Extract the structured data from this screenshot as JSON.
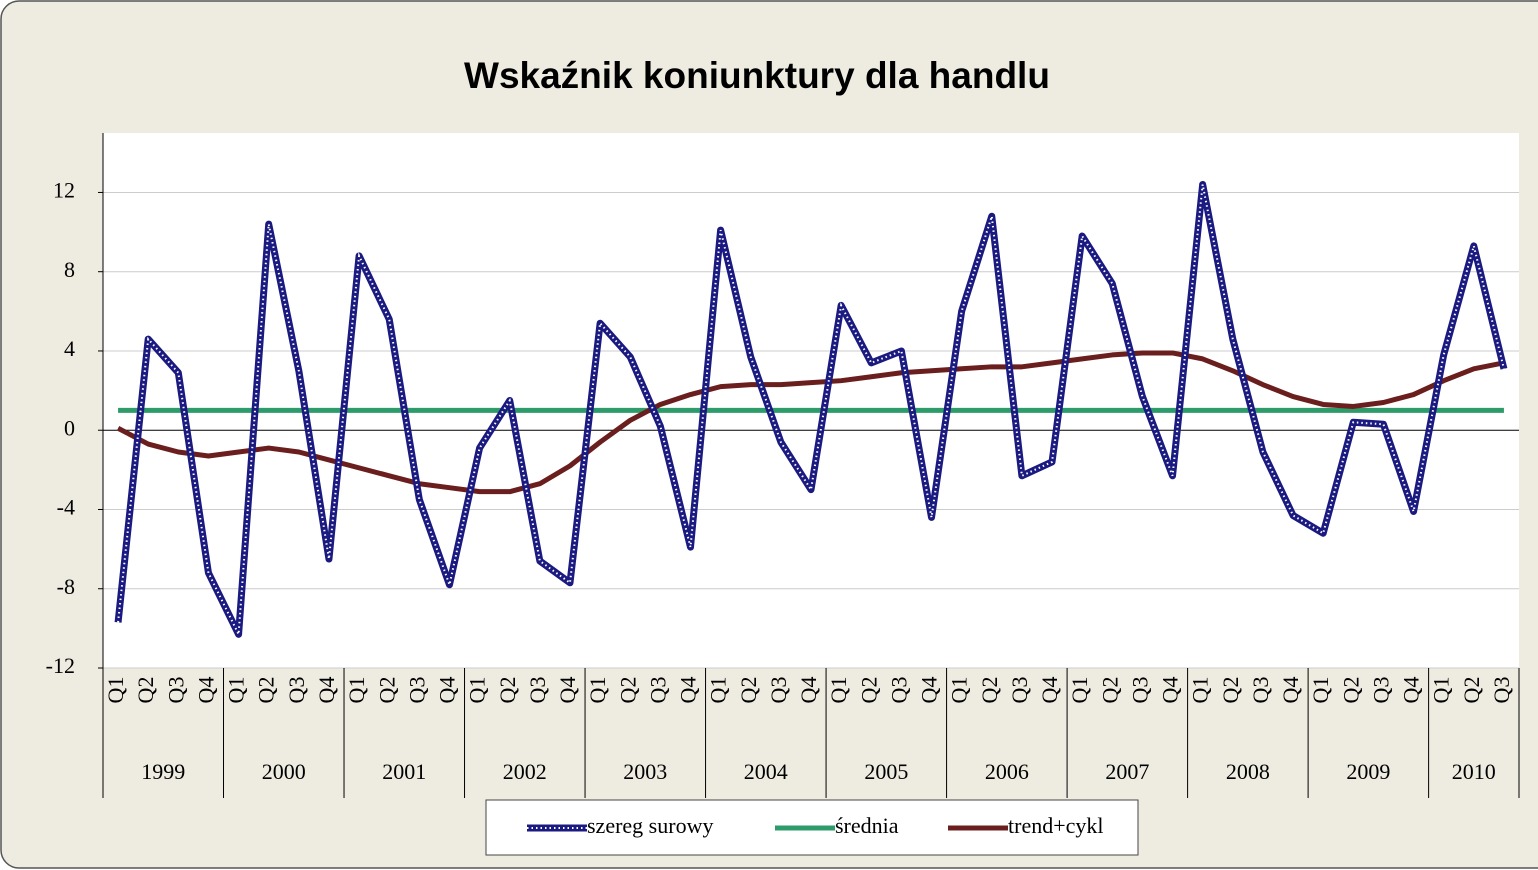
{
  "chart_data": {
    "type": "line",
    "title": "Wskaźnik koniunktury dla handlu",
    "categories": [
      "Q1",
      "Q2",
      "Q3",
      "Q4",
      "Q1",
      "Q2",
      "Q3",
      "Q4",
      "Q1",
      "Q2",
      "Q3",
      "Q4",
      "Q1",
      "Q2",
      "Q3",
      "Q4",
      "Q1",
      "Q2",
      "Q3",
      "Q4",
      "Q1",
      "Q2",
      "Q3",
      "Q4",
      "Q1",
      "Q2",
      "Q3",
      "Q4",
      "Q1",
      "Q2",
      "Q3",
      "Q4",
      "Q1",
      "Q2",
      "Q3",
      "Q4",
      "Q1",
      "Q2",
      "Q3",
      "Q4",
      "Q1",
      "Q2",
      "Q3",
      "Q4",
      "Q1",
      "Q2",
      "Q3"
    ],
    "years": [
      "1999",
      "2000",
      "2001",
      "2002",
      "2003",
      "2004",
      "2005",
      "2006",
      "2007",
      "2008",
      "2009",
      "2010"
    ],
    "series": [
      {
        "name": "szereg surowy",
        "color": "#1a1a80",
        "pattern": "dotted",
        "values": [
          -9.7,
          4.6,
          2.9,
          -7.2,
          -10.3,
          10.4,
          3.0,
          -6.5,
          8.8,
          5.6,
          -3.5,
          -7.8,
          -0.9,
          1.5,
          -6.6,
          -7.7,
          5.4,
          3.7,
          0.2,
          -5.9,
          10.1,
          3.7,
          -0.6,
          -3.0,
          6.3,
          3.4,
          4.0,
          -4.4,
          6.0,
          10.8,
          -2.3,
          -1.6,
          9.8,
          7.4,
          1.7,
          -2.3,
          12.4,
          4.6,
          -1.1,
          -4.3,
          -5.2,
          0.4,
          0.3,
          -4.1,
          3.8,
          9.3,
          3.1
        ]
      },
      {
        "name": "średnia",
        "color": "#2e9b6a",
        "values": [
          1,
          1,
          1,
          1,
          1,
          1,
          1,
          1,
          1,
          1,
          1,
          1,
          1,
          1,
          1,
          1,
          1,
          1,
          1,
          1,
          1,
          1,
          1,
          1,
          1,
          1,
          1,
          1,
          1,
          1,
          1,
          1,
          1,
          1,
          1,
          1,
          1,
          1,
          1,
          1,
          1,
          1,
          1,
          1,
          1,
          1,
          1
        ]
      },
      {
        "name": "trend+cykl",
        "color": "#6b1e1e",
        "values": [
          0.1,
          -0.7,
          -1.1,
          -1.3,
          -1.1,
          -0.9,
          -1.1,
          -1.5,
          -1.9,
          -2.3,
          -2.7,
          -2.9,
          -3.1,
          -3.1,
          -2.7,
          -1.8,
          -0.6,
          0.5,
          1.3,
          1.8,
          2.2,
          2.3,
          2.3,
          2.4,
          2.5,
          2.7,
          2.9,
          3.0,
          3.1,
          3.2,
          3.2,
          3.4,
          3.6,
          3.8,
          3.9,
          3.9,
          3.6,
          3.0,
          2.3,
          1.7,
          1.3,
          1.2,
          1.4,
          1.8,
          2.5,
          3.1,
          3.4
        ]
      }
    ],
    "ylim": [
      -12,
      15
    ],
    "yticks": [
      -12,
      -8,
      -4,
      0,
      4,
      8,
      12
    ],
    "grid": true
  }
}
